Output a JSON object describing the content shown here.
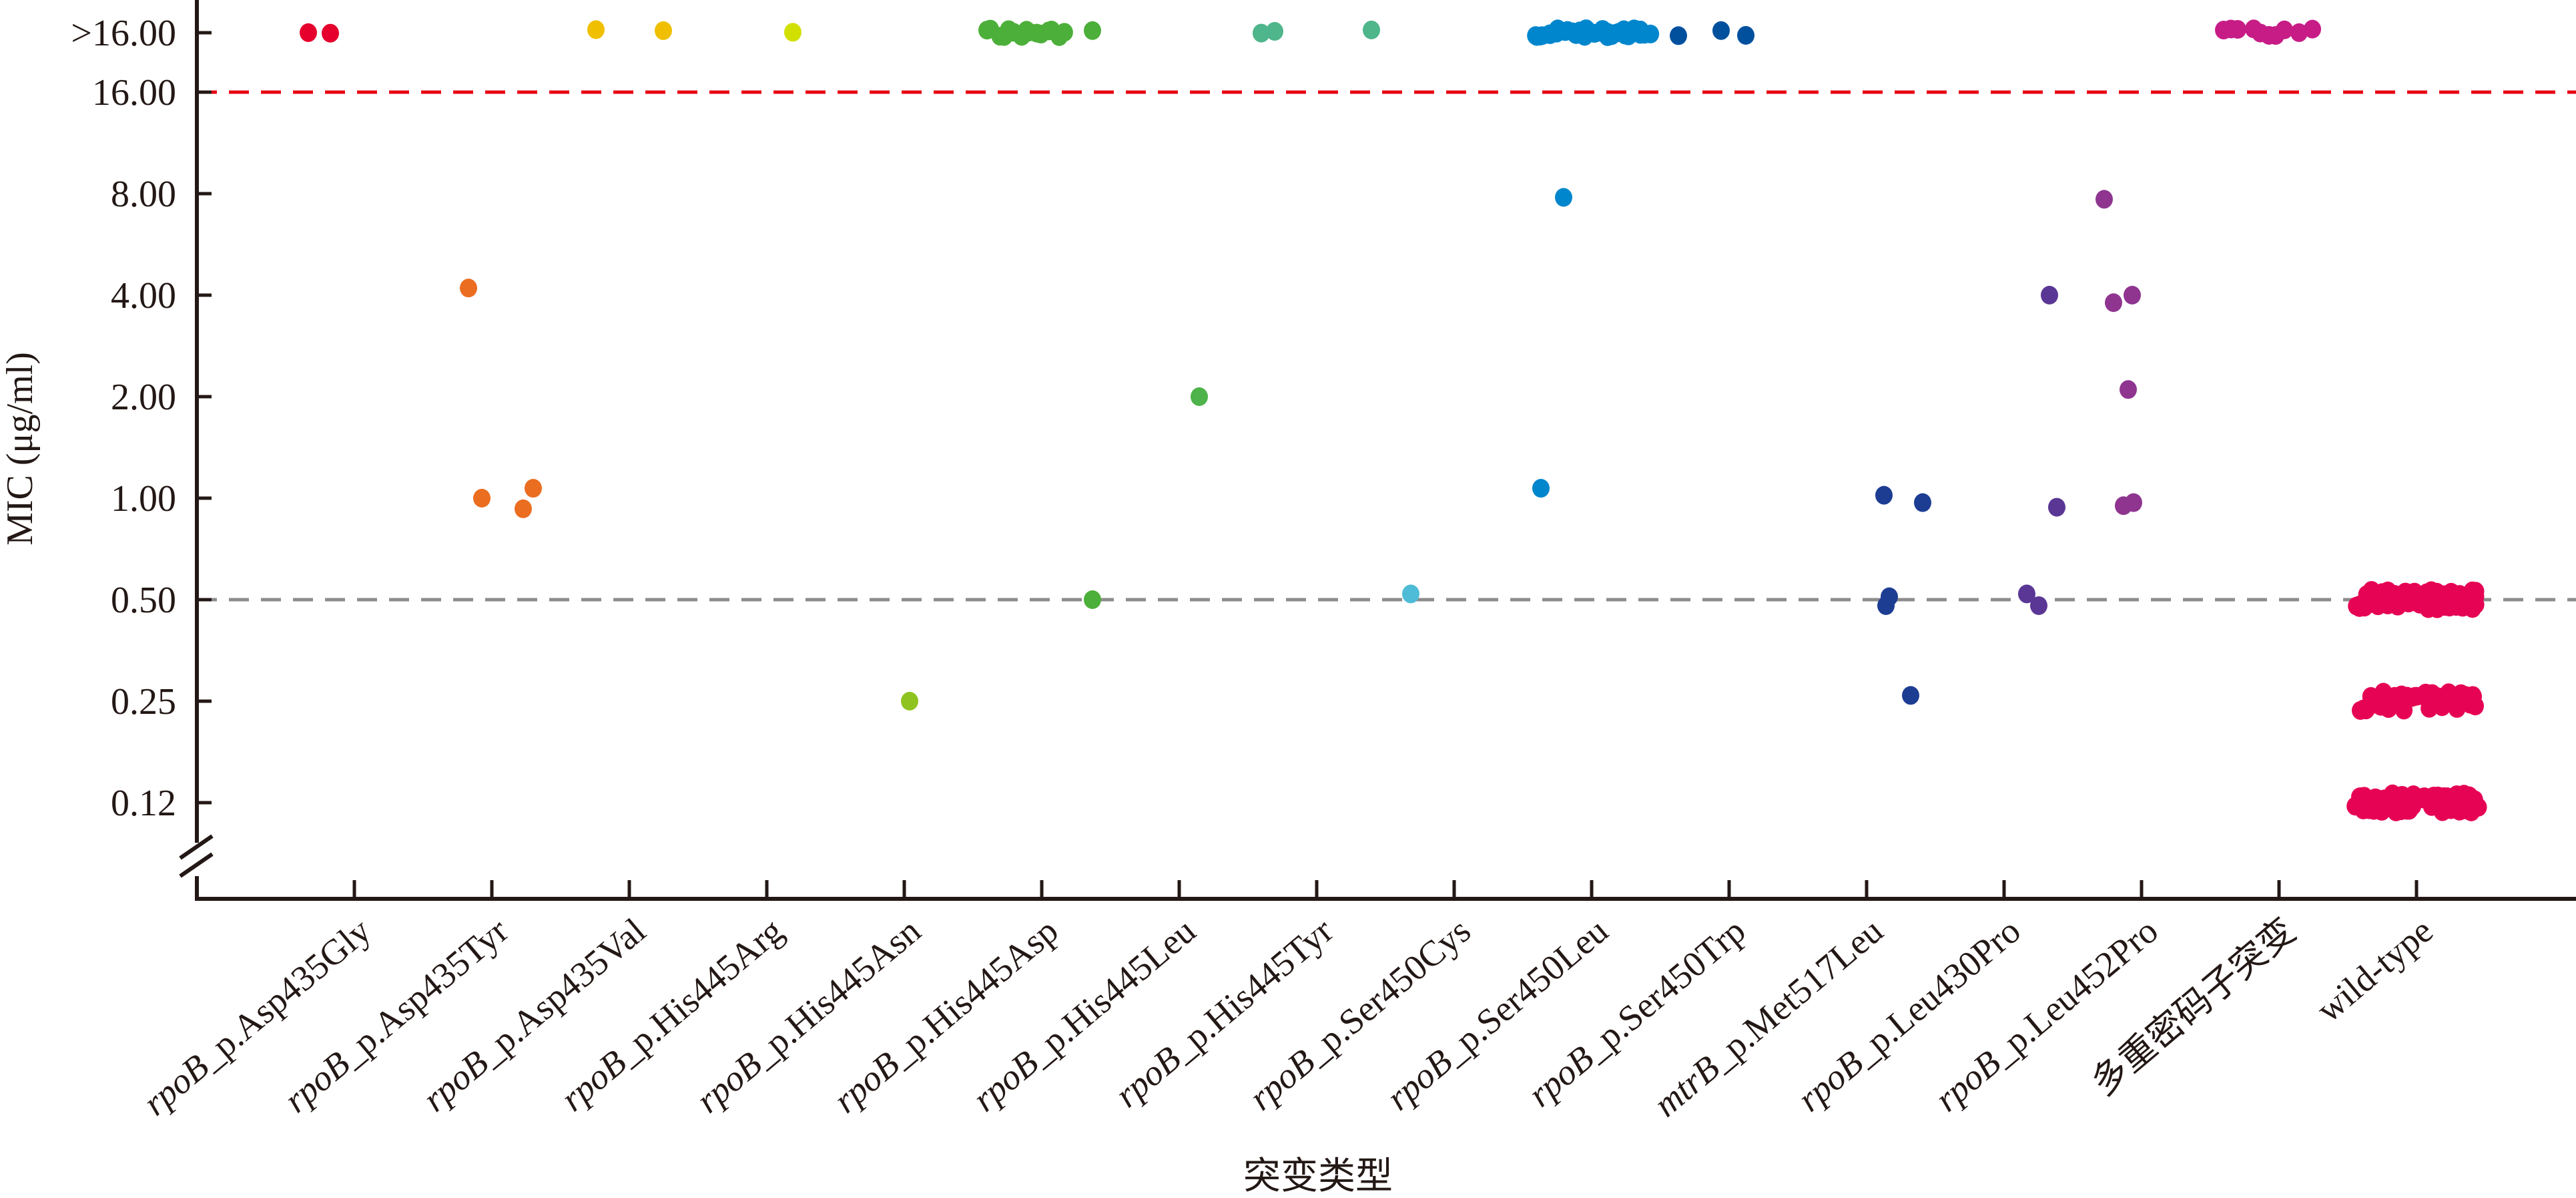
{
  "chart_data": {
    "type": "scatter",
    "subtype": "jittered strip plot",
    "xlabel": "突变类型",
    "ylabel": "MIC (μg/ml)",
    "yscale": "log2",
    "ylim": [
      0.12,
      ">16"
    ],
    "axis_break": "y-axis below 0.12",
    "yticks": [
      {
        "label": ">16.00",
        "value": ">16"
      },
      {
        "label": "16.00",
        "value": 16
      },
      {
        "label": "8.00",
        "value": 8
      },
      {
        "label": "4.00",
        "value": 4
      },
      {
        "label": "2.00",
        "value": 2
      },
      {
        "label": "1.00",
        "value": 1
      },
      {
        "label": "0.50",
        "value": 0.5
      },
      {
        "label": "0.25",
        "value": 0.25
      },
      {
        "label": "0.12",
        "value": 0.125
      }
    ],
    "reference_lines": [
      {
        "value": 16,
        "color": "#e60012",
        "style": "dashed"
      },
      {
        "value": 0.5,
        "color": "#8c8c8c",
        "style": "dashed"
      }
    ],
    "categories": [
      {
        "gene": "rpoB",
        "label": "_p.Asp435Gly",
        "color": "#e5002d",
        "groups": [
          [
            ">16",
            2
          ]
        ]
      },
      {
        "gene": "rpoB",
        "label": "_p.Asp435Tyr",
        "color": "#eb6d20",
        "groups": [
          [
            4.2,
            1
          ],
          [
            1.0,
            1
          ],
          [
            0.93,
            1
          ],
          [
            1.07,
            1
          ]
        ]
      },
      {
        "gene": "rpoB",
        "label": "_p.Asp435Val",
        "color": "#f0c000",
        "groups": [
          [
            ">16",
            2
          ]
        ]
      },
      {
        "gene": "rpoB",
        "label": "_p.His445Arg",
        "color": "#d2e000",
        "groups": [
          [
            ">16",
            1
          ]
        ]
      },
      {
        "gene": "rpoB",
        "label": "_p.His445Asn",
        "color": "#8fc31f",
        "groups": [
          [
            0.25,
            1
          ]
        ]
      },
      {
        "gene": "rpoB",
        "label": "_p.His445Asp",
        "color": "#4caf39",
        "groups": [
          [
            ">16",
            15
          ],
          [
            ">16",
            1
          ],
          [
            0.5,
            1
          ]
        ]
      },
      {
        "gene": "rpoB",
        "label": "_p.His445Leu",
        "color": "#4db34a",
        "groups": [
          [
            2.0,
            1
          ]
        ]
      },
      {
        "gene": "rpoB",
        "label": "_p.His445Tyr",
        "color": "#4fb58a",
        "groups": [
          [
            ">16",
            3
          ]
        ]
      },
      {
        "gene": "rpoB",
        "label": "_p.Ser450Cys",
        "color": "#4ebcd6",
        "groups": [
          [
            0.52,
            1
          ]
        ]
      },
      {
        "gene": "rpoB",
        "label": "_p.Ser450Leu",
        "color": "#0086cc",
        "groups": [
          [
            ">16",
            35
          ],
          [
            7.8,
            1
          ],
          [
            1.07,
            1
          ]
        ]
      },
      {
        "gene": "rpoB",
        "label": "_p.Ser450Trp",
        "color": "#00509e",
        "groups": [
          [
            ">16",
            3
          ]
        ]
      },
      {
        "gene": "mtrB",
        "label": "_p.Met517Leu",
        "color": "#1d3d93",
        "groups": [
          [
            1.02,
            1
          ],
          [
            0.97,
            1
          ],
          [
            0.51,
            1
          ],
          [
            0.48,
            1
          ],
          [
            0.26,
            1
          ]
        ]
      },
      {
        "gene": "rpoB",
        "label": "_p.Leu430Pro",
        "color": "#5b3795",
        "groups": [
          [
            4.0,
            1
          ],
          [
            0.94,
            1
          ],
          [
            0.52,
            1
          ],
          [
            0.48,
            1
          ]
        ]
      },
      {
        "gene": "rpoB",
        "label": "_p.Leu452Pro",
        "color": "#8f3590",
        "groups": [
          [
            7.7,
            1
          ],
          [
            3.8,
            1
          ],
          [
            4.0,
            1
          ],
          [
            2.1,
            1
          ],
          [
            0.95,
            1
          ],
          [
            0.97,
            1
          ]
        ]
      },
      {
        "gene": "",
        "label": "多重密码子突变",
        "color": "#c71c86",
        "groups": [
          [
            ">16",
            10
          ]
        ]
      },
      {
        "gene": "",
        "label": "wild-type",
        "color": "#e60354",
        "groups": [
          [
            0.5,
            60
          ],
          [
            0.25,
            36
          ],
          [
            0.125,
            60
          ]
        ]
      }
    ]
  }
}
